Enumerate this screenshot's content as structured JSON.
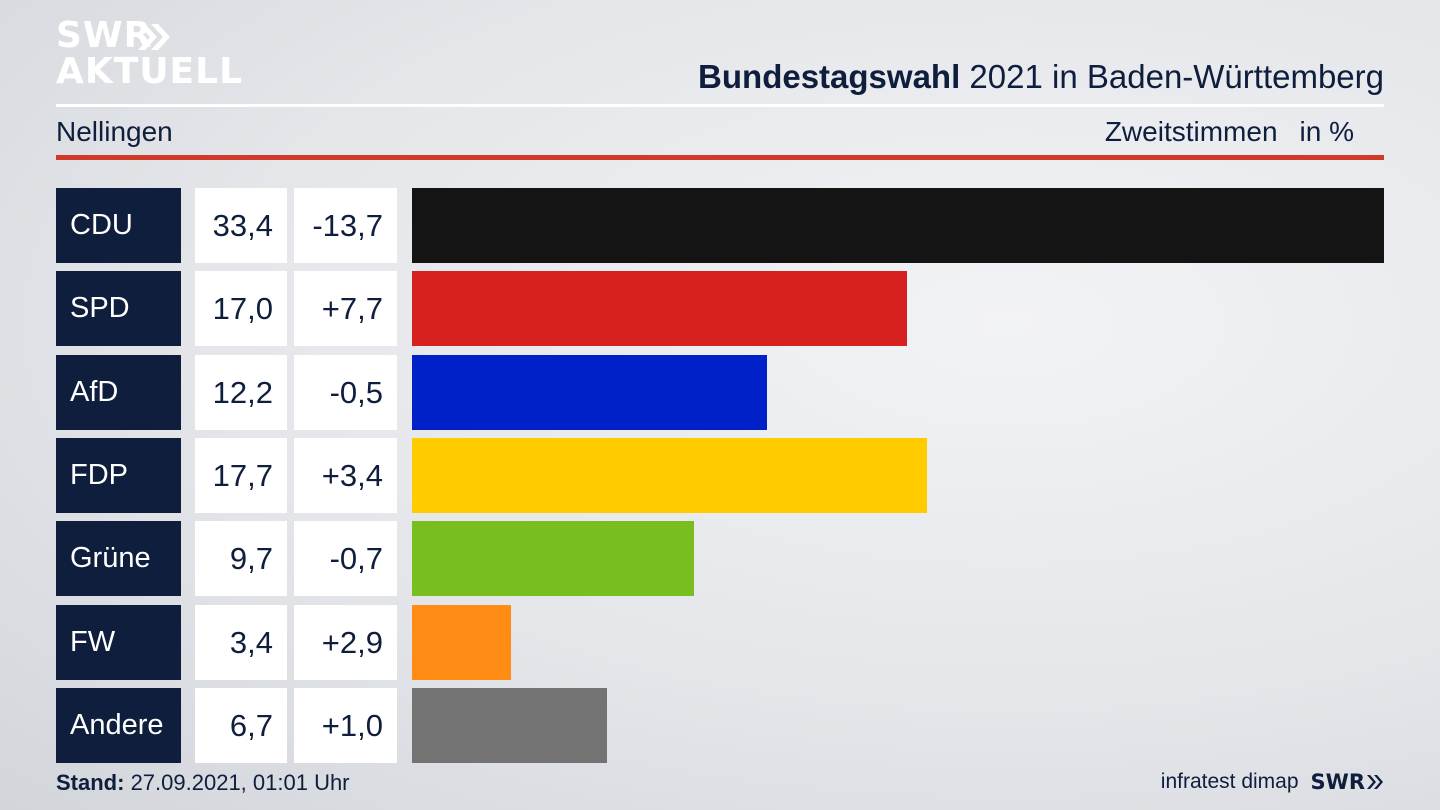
{
  "header": {
    "logo_top": "SWR",
    "logo_bottom": "AKTUELL",
    "title_bold": "Bundestagswahl",
    "title_rest": " 2021 in Baden-Württemberg",
    "region": "Nellingen",
    "vote_type": "Zweitstimmen",
    "unit": "in %"
  },
  "chart_data": {
    "type": "bar",
    "categories": [
      "CDU",
      "SPD",
      "AfD",
      "FDP",
      "Grüne",
      "FW",
      "Andere"
    ],
    "values": [
      33.4,
      17.0,
      12.2,
      17.7,
      9.7,
      3.4,
      6.7
    ],
    "value_labels": [
      "33,4",
      "17,0",
      "12,2",
      "17,7",
      "9,7",
      "3,4",
      "6,7"
    ],
    "diff_labels": [
      "-13,7",
      "+7,7",
      "-0,5",
      "+3,4",
      "-0,7",
      "+2,9",
      "+1,0"
    ],
    "colors": [
      "#141414",
      "#d72020",
      "#0020c8",
      "#ffcc00",
      "#78be1e",
      "#ff8c14",
      "#737373"
    ],
    "orientation": "horizontal",
    "xlim": [
      0,
      33.4
    ],
    "grid": false
  },
  "footer": {
    "stand_label": "Stand:",
    "stand_value": " 27.09.2021, 01:01 Uhr",
    "source": "infratest dimap",
    "brand": "SWR"
  }
}
